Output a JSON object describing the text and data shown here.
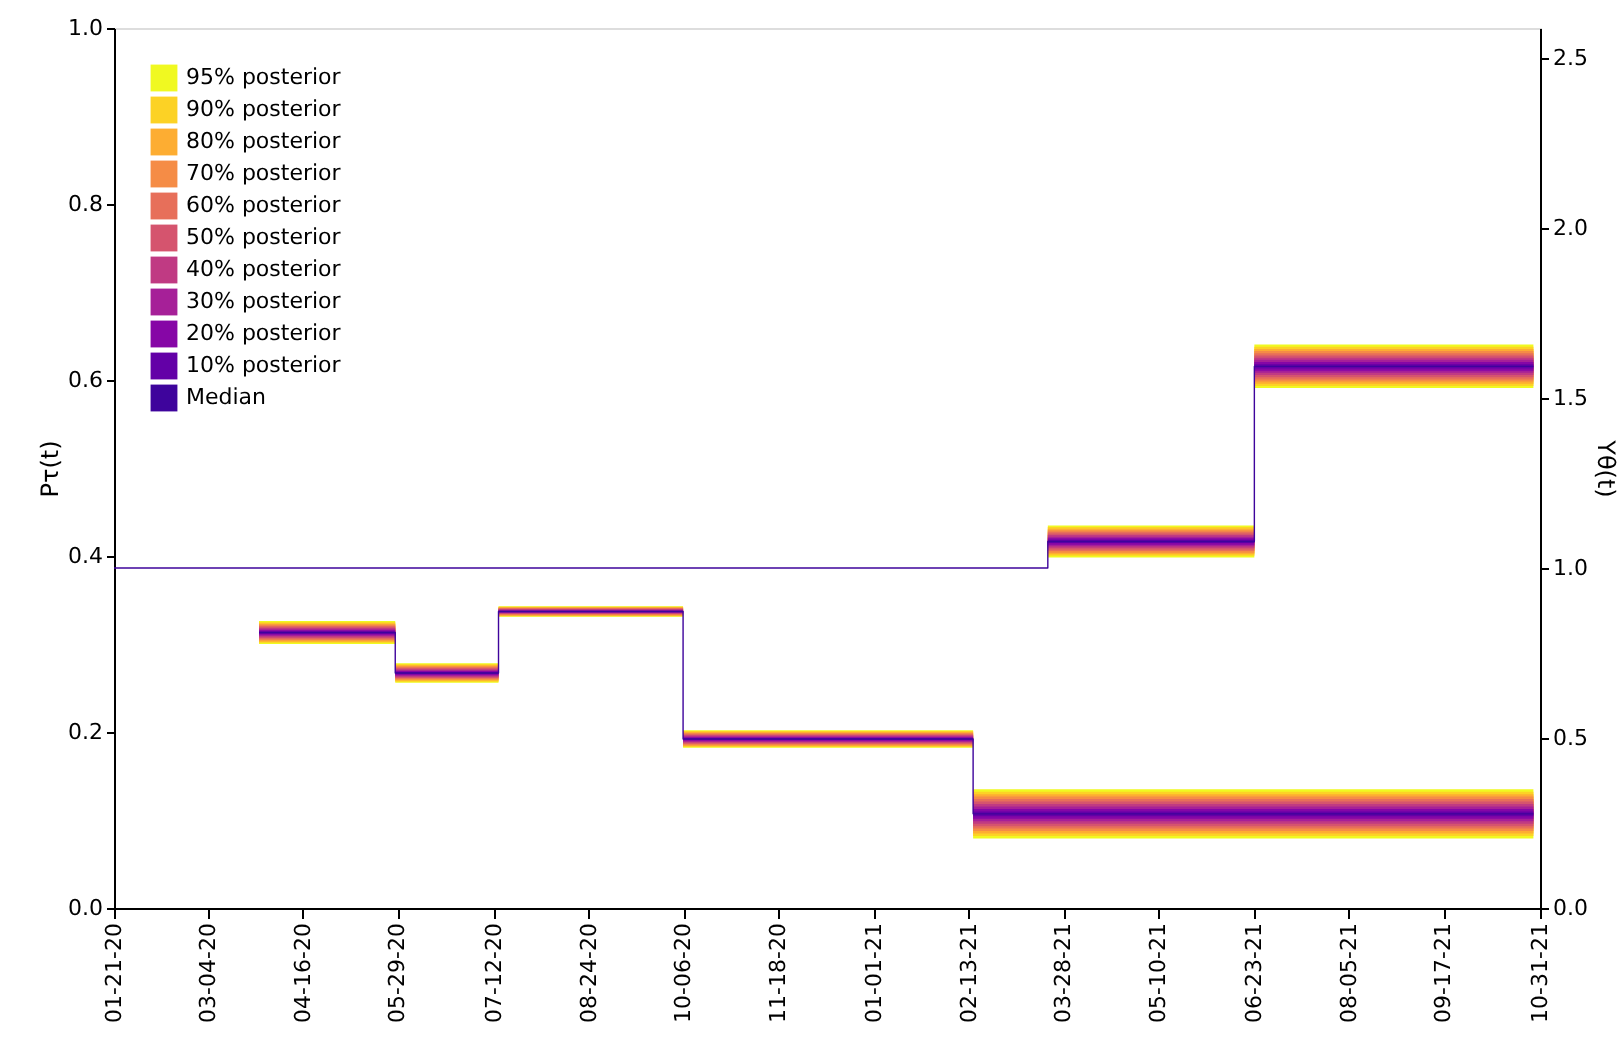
{
  "chart_data": {
    "type": "step",
    "ylabel": "Pτ(t)",
    "y2label": "Yθ(t)",
    "xlim": [
      "2020-01-21",
      "2021-10-31"
    ],
    "xticks": [
      {
        "value": "2020-01-21",
        "label": "01-21-20"
      },
      {
        "value": "2020-03-04",
        "label": "03-04-20"
      },
      {
        "value": "2020-04-16",
        "label": "04-16-20"
      },
      {
        "value": "2020-05-29",
        "label": "05-29-20"
      },
      {
        "value": "2020-07-12",
        "label": "07-12-20"
      },
      {
        "value": "2020-08-24",
        "label": "08-24-20"
      },
      {
        "value": "2020-10-06",
        "label": "10-06-20"
      },
      {
        "value": "2020-11-18",
        "label": "11-18-20"
      },
      {
        "value": "2021-01-01",
        "label": "01-01-21"
      },
      {
        "value": "2021-02-13",
        "label": "02-13-21"
      },
      {
        "value": "2021-03-28",
        "label": "03-28-21"
      },
      {
        "value": "2021-05-10",
        "label": "05-10-21"
      },
      {
        "value": "2021-06-23",
        "label": "06-23-21"
      },
      {
        "value": "2021-08-05",
        "label": "08-05-21"
      },
      {
        "value": "2021-09-17",
        "label": "09-17-21"
      },
      {
        "value": "2021-10-31",
        "label": "10-31-21"
      }
    ],
    "ylim": [
      0,
      1
    ],
    "yticks": [
      {
        "value": 0,
        "label": "0.0"
      },
      {
        "value": 0.2,
        "label": "0.2"
      },
      {
        "value": 0.4,
        "label": "0.4"
      },
      {
        "value": 0.6,
        "label": "0.6"
      },
      {
        "value": 0.8,
        "label": "0.8"
      },
      {
        "value": 1,
        "label": "1.0"
      }
    ],
    "y2lim": [
      0,
      2.588
    ],
    "y2ticks": [
      {
        "value": 0,
        "label": "0.0"
      },
      {
        "value": 0.5,
        "label": "0.5"
      },
      {
        "value": 1,
        "label": "1.0"
      },
      {
        "value": 1.5,
        "label": "1.5"
      },
      {
        "value": 2,
        "label": "2.0"
      },
      {
        "value": 2.5,
        "label": "2.5"
      }
    ],
    "grid": false,
    "legend": "top left",
    "series": [
      {
        "type": "area",
        "name": "95% posterior",
        "color": "#f0f921",
        "x": [
          "2020-03-27",
          "2020-05-28",
          "2020-07-14",
          "2020-10-06",
          "2021-02-15",
          "2021-10-28"
        ],
        "values": [
          null,
          null,
          null,
          null,
          null,
          null
        ],
        "lower": [
          0.3,
          0.256,
          0.331,
          0.182,
          0.079,
          0.079
        ],
        "upper": [
          0.326,
          0.278,
          0.343,
          0.202,
          0.135,
          0.135
        ]
      },
      {
        "type": "area",
        "name": "90% posterior",
        "color": "#fcd225",
        "x": [
          "2020-03-27",
          "2020-05-28",
          "2020-07-14",
          "2020-10-06",
          "2021-02-15",
          "2021-10-28"
        ],
        "values": [
          null,
          null,
          null,
          null,
          null,
          null
        ],
        "lower": [
          0.3013,
          0.2571,
          0.3316,
          0.183,
          0.0818,
          0.0818
        ],
        "upper": [
          0.3247,
          0.2769,
          0.3424,
          0.201,
          0.1322,
          0.1322
        ]
      },
      {
        "type": "area",
        "name": "80% posterior",
        "color": "#fdad32",
        "x": [
          "2020-03-27",
          "2020-05-28",
          "2020-07-14",
          "2020-10-06",
          "2021-02-15",
          "2021-10-28"
        ],
        "values": [
          null,
          null,
          null,
          null,
          null,
          null
        ],
        "lower": [
          0.3026,
          0.2582,
          0.3322,
          0.184,
          0.0846,
          0.0846
        ],
        "upper": [
          0.3234,
          0.2758,
          0.3418,
          0.2,
          0.1294,
          0.1294
        ]
      },
      {
        "type": "area",
        "name": "70% posterior",
        "color": "#f58c46",
        "x": [
          "2020-03-27",
          "2020-05-28",
          "2020-07-14",
          "2020-10-06",
          "2021-02-15",
          "2021-10-28"
        ],
        "values": [
          null,
          null,
          null,
          null,
          null,
          null
        ],
        "lower": [
          0.3039,
          0.2593,
          0.3328,
          0.185,
          0.0874,
          0.0874
        ],
        "upper": [
          0.3221,
          0.2747,
          0.3412,
          0.199,
          0.1266,
          0.1266
        ]
      },
      {
        "type": "area",
        "name": "60% posterior",
        "color": "#e76f5a",
        "x": [
          "2020-03-27",
          "2020-05-28",
          "2020-07-14",
          "2020-10-06",
          "2021-02-15",
          "2021-10-28"
        ],
        "values": [
          null,
          null,
          null,
          null,
          null,
          null
        ],
        "lower": [
          0.3052,
          0.2604,
          0.3334,
          0.186,
          0.0902,
          0.0902
        ],
        "upper": [
          0.3208,
          0.2736,
          0.3406,
          0.198,
          0.1238,
          0.1238
        ]
      },
      {
        "type": "area",
        "name": "50% posterior",
        "color": "#d5546e",
        "x": [
          "2020-03-27",
          "2020-05-28",
          "2020-07-14",
          "2020-10-06",
          "2021-02-15",
          "2021-10-28"
        ],
        "values": [
          null,
          null,
          null,
          null,
          null,
          null
        ],
        "lower": [
          0.3065,
          0.2615,
          0.334,
          0.187,
          0.093,
          0.093
        ],
        "upper": [
          0.3195,
          0.2725,
          0.34,
          0.197,
          0.121,
          0.121
        ]
      },
      {
        "type": "area",
        "name": "40% posterior",
        "color": "#c03a83",
        "x": [
          "2020-03-27",
          "2020-05-28",
          "2020-07-14",
          "2020-10-06",
          "2021-02-15",
          "2021-10-28"
        ],
        "values": [
          null,
          null,
          null,
          null,
          null,
          null
        ],
        "lower": [
          0.3078,
          0.2626,
          0.3346,
          0.188,
          0.0958,
          0.0958
        ],
        "upper": [
          0.3182,
          0.2714,
          0.3394,
          0.196,
          0.1182,
          0.1182
        ]
      },
      {
        "type": "area",
        "name": "30% posterior",
        "color": "#a62098",
        "x": [
          "2020-03-27",
          "2020-05-28",
          "2020-07-14",
          "2020-10-06",
          "2021-02-15",
          "2021-10-28"
        ],
        "values": [
          null,
          null,
          null,
          null,
          null,
          null
        ],
        "lower": [
          0.3091,
          0.2637,
          0.3352,
          0.189,
          0.0986,
          0.0986
        ],
        "upper": [
          0.3169,
          0.2703,
          0.3388,
          0.195,
          0.1154,
          0.1154
        ]
      },
      {
        "type": "area",
        "name": "20% posterior",
        "color": "#8606a6",
        "x": [
          "2020-03-27",
          "2020-05-28",
          "2020-07-14",
          "2020-10-06",
          "2021-02-15",
          "2021-10-28"
        ],
        "values": [
          null,
          null,
          null,
          null,
          null,
          null
        ],
        "lower": [
          0.3104,
          0.2648,
          0.3358,
          0.19,
          0.1014,
          0.1014
        ],
        "upper": [
          0.3156,
          0.2692,
          0.3382,
          0.194,
          0.1126,
          0.1126
        ]
      },
      {
        "type": "area",
        "name": "10% posterior",
        "color": "#6300a7",
        "x": [
          "2020-03-27",
          "2020-05-28",
          "2020-07-14",
          "2020-10-06",
          "2021-02-15",
          "2021-10-28"
        ],
        "values": [
          null,
          null,
          null,
          null,
          null,
          null
        ],
        "lower": [
          0.3117,
          0.2659,
          0.3364,
          0.191,
          0.1042,
          0.1042
        ],
        "upper": [
          0.3143,
          0.2681,
          0.3376,
          0.193,
          0.1098,
          0.1098
        ]
      },
      {
        "type": "step",
        "name": "Median",
        "color": "#3e049c",
        "x": [
          "2020-03-27",
          "2020-05-28",
          "2020-07-14",
          "2020-10-06",
          "2021-02-15",
          "2021-10-28"
        ],
        "values": [
          0.313,
          0.267,
          0.337,
          0.192,
          0.107,
          0.107
        ]
      },
      {
        "type": "area",
        "axis": "y2",
        "color": "#f0f921",
        "x": [
          "2020-01-21",
          "2021-03-21",
          "2021-06-23",
          "2021-10-28"
        ],
        "values": [
          null,
          null,
          null,
          null
        ],
        "lower": [
          1.0,
          1.031,
          1.529,
          1.529
        ],
        "upper": [
          1.0,
          1.125,
          1.657,
          1.657
        ]
      },
      {
        "type": "area",
        "axis": "y2",
        "color": "#fcd225",
        "x": [
          "2020-01-21",
          "2021-03-21",
          "2021-06-23",
          "2021-10-28"
        ],
        "values": [
          null,
          null,
          null,
          null
        ],
        "lower": [
          1.0,
          1.0357,
          1.5354,
          1.5354
        ],
        "upper": [
          1.0,
          1.1203,
          1.6506,
          1.6506
        ]
      },
      {
        "type": "area",
        "axis": "y2",
        "color": "#fdad32",
        "x": [
          "2020-01-21",
          "2021-03-21",
          "2021-06-23",
          "2021-10-28"
        ],
        "values": [
          null,
          null,
          null,
          null
        ],
        "lower": [
          1.0,
          1.0404,
          1.5418,
          1.5418
        ],
        "upper": [
          1.0,
          1.1156,
          1.6442,
          1.6442
        ]
      },
      {
        "type": "area",
        "axis": "y2",
        "color": "#f58c46",
        "x": [
          "2020-01-21",
          "2021-03-21",
          "2021-06-23",
          "2021-10-28"
        ],
        "values": [
          null,
          null,
          null,
          null
        ],
        "lower": [
          1.0,
          1.0451,
          1.5482,
          1.5482
        ],
        "upper": [
          1.0,
          1.1109,
          1.6378,
          1.6378
        ]
      },
      {
        "type": "area",
        "axis": "y2",
        "color": "#e76f5a",
        "x": [
          "2020-01-21",
          "2021-03-21",
          "2021-06-23",
          "2021-10-28"
        ],
        "values": [
          null,
          null,
          null,
          null
        ],
        "lower": [
          1.0,
          1.0498,
          1.5546,
          1.5546
        ],
        "upper": [
          1.0,
          1.1062,
          1.6314,
          1.6314
        ]
      },
      {
        "type": "area",
        "axis": "y2",
        "color": "#d5546e",
        "x": [
          "2020-01-21",
          "2021-03-21",
          "2021-06-23",
          "2021-10-28"
        ],
        "values": [
          null,
          null,
          null,
          null
        ],
        "lower": [
          1.0,
          1.0545,
          1.561,
          1.561
        ],
        "upper": [
          1.0,
          1.1015,
          1.625,
          1.625
        ]
      },
      {
        "type": "area",
        "axis": "y2",
        "color": "#c03a83",
        "x": [
          "2020-01-21",
          "2021-03-21",
          "2021-06-23",
          "2021-10-28"
        ],
        "values": [
          null,
          null,
          null,
          null
        ],
        "lower": [
          1.0,
          1.0592,
          1.5674,
          1.5674
        ],
        "upper": [
          1.0,
          1.0968,
          1.6186,
          1.6186
        ]
      },
      {
        "type": "area",
        "axis": "y2",
        "color": "#a62098",
        "x": [
          "2020-01-21",
          "2021-03-21",
          "2021-06-23",
          "2021-10-28"
        ],
        "values": [
          null,
          null,
          null,
          null
        ],
        "lower": [
          1.0,
          1.0639,
          1.5738,
          1.5738
        ],
        "upper": [
          1.0,
          1.0921,
          1.6122,
          1.6122
        ]
      },
      {
        "type": "area",
        "axis": "y2",
        "color": "#8606a6",
        "x": [
          "2020-01-21",
          "2021-03-21",
          "2021-06-23",
          "2021-10-28"
        ],
        "values": [
          null,
          null,
          null,
          null
        ],
        "lower": [
          1.0,
          1.0686,
          1.5802,
          1.5802
        ],
        "upper": [
          1.0,
          1.0874,
          1.6058,
          1.6058
        ]
      },
      {
        "type": "area",
        "axis": "y2",
        "color": "#6300a7",
        "x": [
          "2020-01-21",
          "2021-03-21",
          "2021-06-23",
          "2021-10-28"
        ],
        "values": [
          null,
          null,
          null,
          null
        ],
        "lower": [
          1.0,
          1.0733,
          1.5866,
          1.5866
        ],
        "upper": [
          1.0,
          1.0827,
          1.5994,
          1.5994
        ]
      },
      {
        "type": "step",
        "axis": "y2",
        "color": "#3e049c",
        "x": [
          "2020-01-21",
          "2021-03-21",
          "2021-06-23",
          "2021-10-28"
        ],
        "values": [
          1.0,
          1.078,
          1.593,
          1.593
        ]
      }
    ]
  }
}
